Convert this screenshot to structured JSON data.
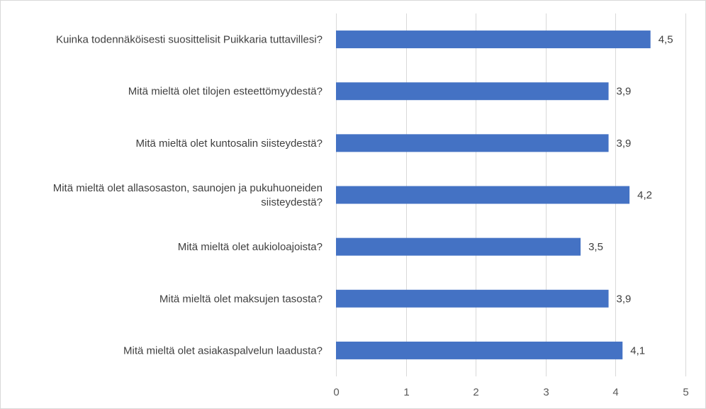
{
  "chart_data": {
    "type": "bar",
    "orientation": "horizontal",
    "categories": [
      [
        "Kuinka todennäköisesti suosittelisit Puikkaria tuttavillesi?"
      ],
      [
        "Mitä mieltä olet tilojen esteettömyydestä?"
      ],
      [
        "Mitä mieltä olet kuntosalin siisteydestä?"
      ],
      [
        "Mitä mieltä olet allasosaston, saunojen ja pukuhuoneiden",
        "siisteydestä?"
      ],
      [
        "Mitä mieltä olet aukioloajoista?"
      ],
      [
        "Mitä mieltä olet maksujen tasosta?"
      ],
      [
        "Mitä mieltä olet asiakaspalvelun laadusta?"
      ]
    ],
    "values": [
      4.5,
      3.9,
      3.9,
      4.2,
      3.5,
      3.9,
      4.1
    ],
    "value_labels": [
      "4,5",
      "3,9",
      "3,9",
      "4,2",
      "3,5",
      "3,9",
      "4,1"
    ],
    "x_ticks": [
      "0",
      "1",
      "2",
      "3",
      "4",
      "5"
    ],
    "xlim": [
      0,
      5
    ],
    "grid": "vertical",
    "bar_color": "#4472C4",
    "grid_color": "#d9d9d9",
    "title": "",
    "xlabel": "",
    "ylabel": ""
  }
}
